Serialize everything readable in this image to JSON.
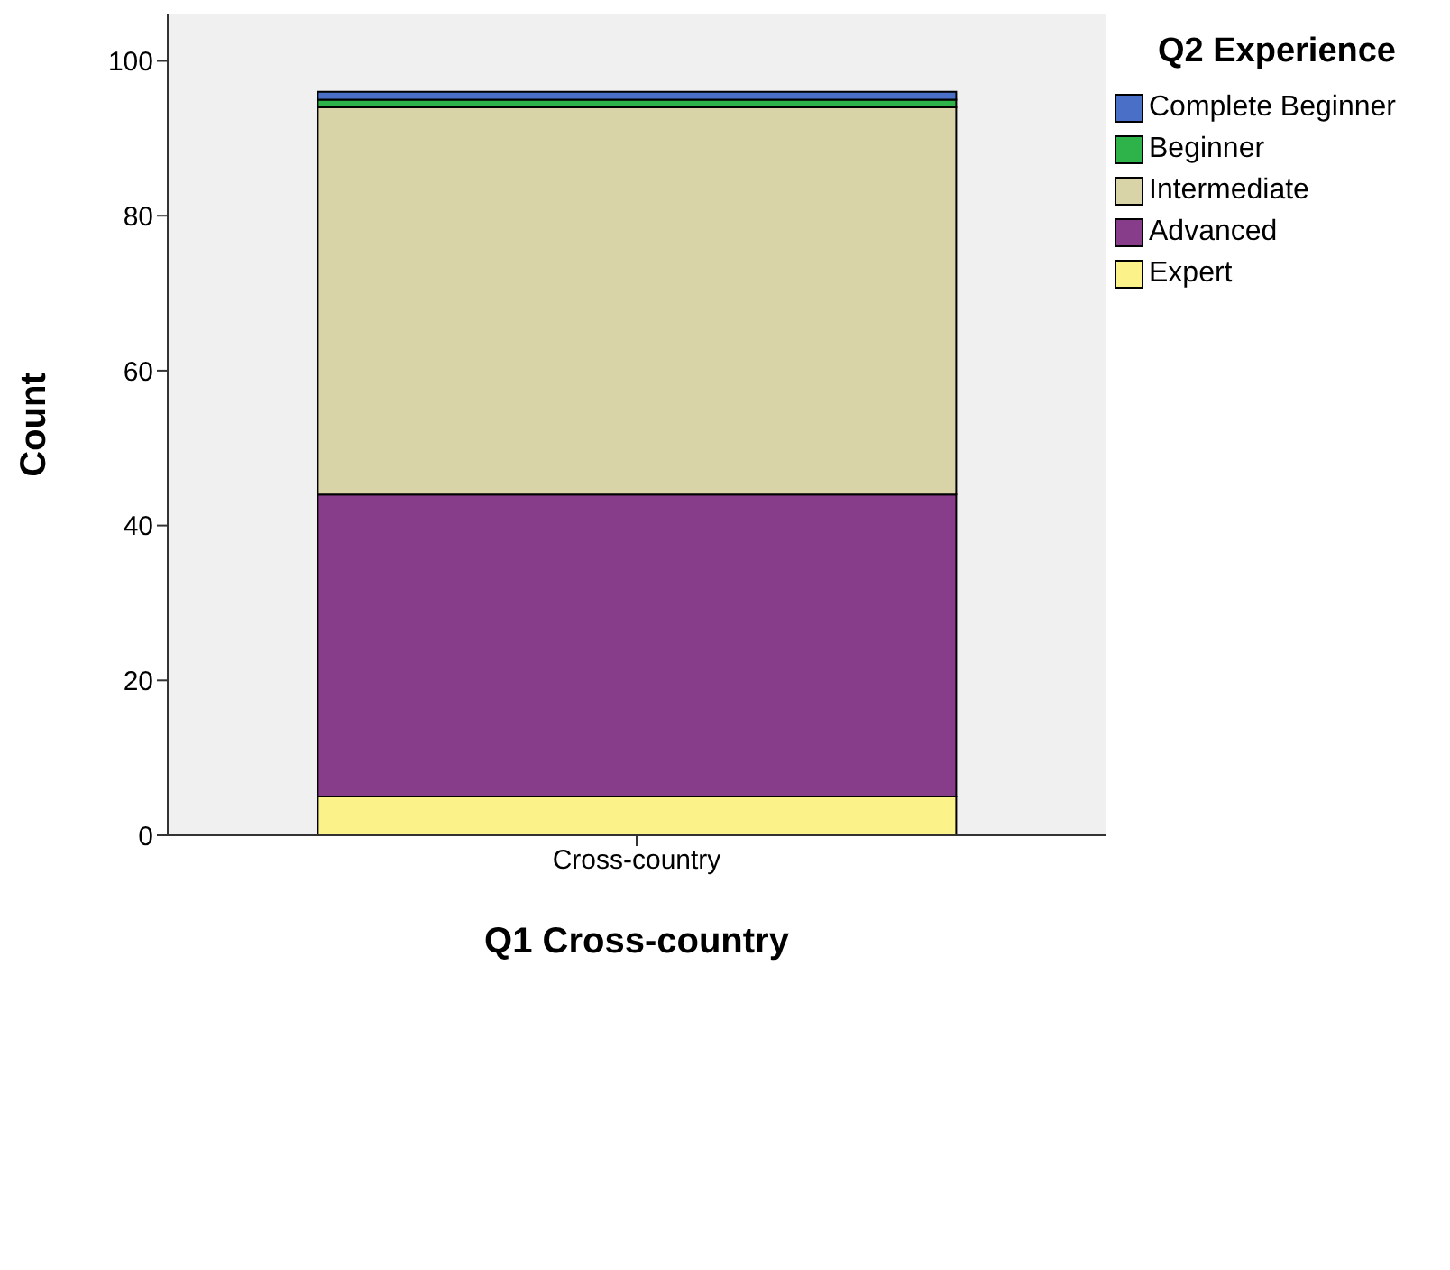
{
  "chart_data": {
    "type": "bar",
    "stacked": true,
    "xlabel": "Q1 Cross-country",
    "ylabel": "Count",
    "legend_title": "Q2 Experience",
    "legend": "top right",
    "grid": false,
    "categories": [
      "Cross-country"
    ],
    "ylim": [
      0,
      106
    ],
    "yticks": [
      0,
      20,
      40,
      60,
      80,
      100
    ],
    "series": [
      {
        "name": "Expert",
        "color": "#fbf38a",
        "values": [
          5
        ]
      },
      {
        "name": "Advanced",
        "color": "#883d8b",
        "values": [
          39
        ]
      },
      {
        "name": "Intermediate",
        "color": "#d8d4a8",
        "values": [
          50
        ]
      },
      {
        "name": "Beginner",
        "color": "#2eb34a",
        "values": [
          1
        ]
      },
      {
        "name": "Complete Beginner",
        "color": "#4a6fc7",
        "values": [
          1
        ]
      }
    ]
  }
}
